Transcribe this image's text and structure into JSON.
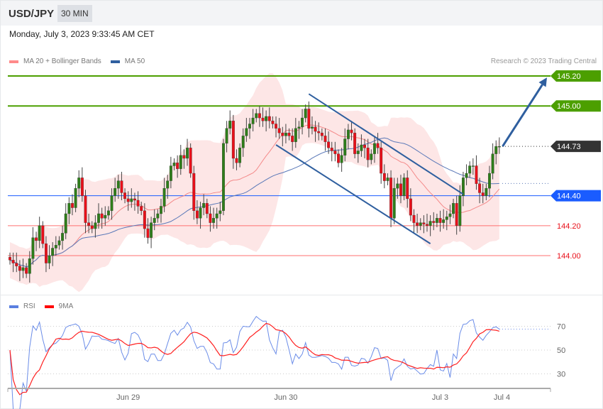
{
  "header": {
    "pair": "USD/JPY",
    "timeframe": "30 MIN",
    "datetime": "Monday, July 3, 2023 9:33:45 AM CET"
  },
  "legend": {
    "bollinger": "MA 20 + Bollinger Bands",
    "ma50": "MA 50",
    "rsi": "RSI",
    "rsi_ma": "9MA",
    "copyright": "Research © 2023 Trading Central"
  },
  "colors": {
    "up": "#2e7d1a",
    "down": "#e8101a",
    "band": "#fde3e3",
    "ma20": "#f48a8a",
    "ma50": "#5a78b8",
    "resistance": "#4c9f00",
    "pivot": "#1a5cff",
    "support": "#ff7070",
    "last": "#333333",
    "arrow": "#2f5f9f",
    "rsi": "#6a8ce8",
    "rsi_ma": "#ff2020"
  },
  "chart_data": [
    {
      "type": "candlestick",
      "title": "",
      "y_range": [
        143.8,
        145.3
      ],
      "x_ticks": [
        {
          "label": "Jun 29",
          "index": 36
        },
        {
          "label": "Jun 30",
          "index": 84
        },
        {
          "label": "Jul 3",
          "index": 131
        },
        {
          "label": "Jul 4",
          "index": 150
        }
      ],
      "closes": [
        143.97,
        143.95,
        143.93,
        143.9,
        143.92,
        143.88,
        143.98,
        144.12,
        144.1,
        144.2,
        144.08,
        143.95,
        144.0,
        144.05,
        144.07,
        144.1,
        144.15,
        144.28,
        144.35,
        144.32,
        144.45,
        144.52,
        144.4,
        144.22,
        144.2,
        144.18,
        144.22,
        144.28,
        144.25,
        144.27,
        144.3,
        144.4,
        144.45,
        144.5,
        144.42,
        144.38,
        144.36,
        144.38,
        144.37,
        144.33,
        144.3,
        144.18,
        144.12,
        144.22,
        144.25,
        144.28,
        144.33,
        144.45,
        144.5,
        144.6,
        144.62,
        144.58,
        144.67,
        144.65,
        144.72,
        144.55,
        144.3,
        144.25,
        144.32,
        144.35,
        144.28,
        144.22,
        144.25,
        144.28,
        144.3,
        144.75,
        144.85,
        144.9,
        144.65,
        144.62,
        144.72,
        144.8,
        144.85,
        144.88,
        144.92,
        144.95,
        144.92,
        144.9,
        144.93,
        144.9,
        144.88,
        144.85,
        144.82,
        144.8,
        144.82,
        144.8,
        144.76,
        144.85,
        144.86,
        144.92,
        144.98,
        144.85,
        144.86,
        144.83,
        144.82,
        144.8,
        144.76,
        144.72,
        144.7,
        144.68,
        144.62,
        144.67,
        144.78,
        144.84,
        144.82,
        144.68,
        144.7,
        144.74,
        144.72,
        144.64,
        144.68,
        144.75,
        144.72,
        144.55,
        144.5,
        144.52,
        144.25,
        144.45,
        144.48,
        144.4,
        144.52,
        144.38,
        144.27,
        144.22,
        144.2,
        144.22,
        144.21,
        144.2,
        144.23,
        144.22,
        144.25,
        144.22,
        144.24,
        144.26,
        144.28,
        144.35,
        144.2,
        144.4,
        144.52,
        144.55,
        144.6,
        144.6,
        144.48,
        144.42,
        144.4,
        144.45,
        144.55,
        144.68,
        144.73,
        144.73
      ],
      "levels": [
        {
          "price": 145.2,
          "label": "145.20",
          "kind": "resistance"
        },
        {
          "price": 145.0,
          "label": "145.00",
          "kind": "resistance"
        },
        {
          "price": 144.73,
          "label": "144.73",
          "kind": "last"
        },
        {
          "price": 144.4,
          "label": "144.40",
          "kind": "pivot"
        },
        {
          "price": 144.2,
          "label": "144.20",
          "kind": "support"
        },
        {
          "price": 144.0,
          "label": "144.00",
          "kind": "support"
        }
      ],
      "channel": {
        "upper": [
          [
            91,
            145.08
          ],
          [
            138,
            144.41
          ]
        ],
        "lower": [
          [
            81,
            144.74
          ],
          [
            128,
            144.08
          ]
        ]
      },
      "target_arrow": [
        [
          150,
          144.73
        ],
        [
          163.5,
          145.19
        ]
      ]
    },
    {
      "type": "line",
      "series": [
        {
          "name": "RSI"
        },
        {
          "name": "9MA"
        }
      ],
      "y_ticks": [
        70,
        50,
        30
      ],
      "y_range": [
        20,
        80
      ]
    }
  ]
}
